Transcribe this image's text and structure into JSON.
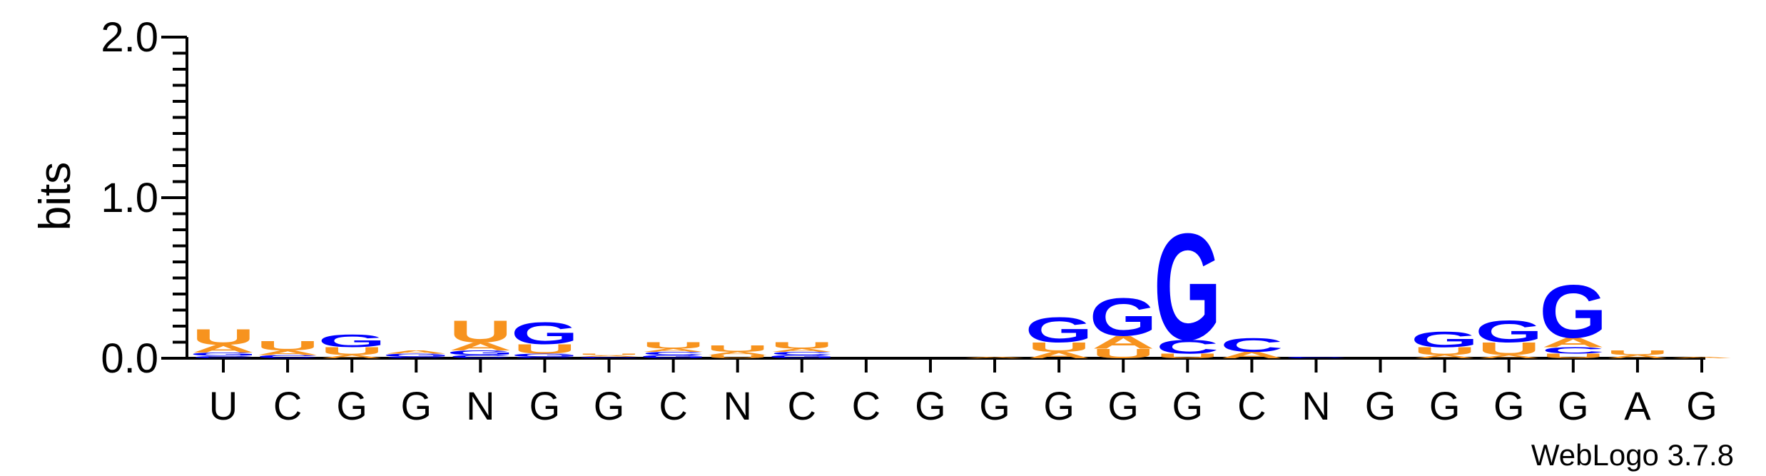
{
  "chart_data": {
    "type": "sequence-logo",
    "ylabel": "bits",
    "ylim": [
      0,
      2.0
    ],
    "yticks": [
      "0.0",
      "1.0",
      "2.0"
    ],
    "xticks": [
      "U",
      "C",
      "G",
      "G",
      "N",
      "G",
      "G",
      "C",
      "N",
      "C",
      "C",
      "G",
      "G",
      "G",
      "G",
      "G",
      "C",
      "N",
      "G",
      "G",
      "G",
      "G",
      "A",
      "G"
    ],
    "credit": "WebLogo 3.7.8",
    "colors": {
      "A": "#f7931e",
      "U": "#f7931e",
      "C": "#0000ff",
      "G": "#0000ff"
    },
    "positions": [
      [
        [
          "C",
          0.015
        ],
        [
          "G",
          0.02
        ],
        [
          "A",
          0.05
        ],
        [
          "U",
          0.1
        ]
      ],
      [
        [
          "C",
          0.02
        ],
        [
          "A",
          0.03
        ],
        [
          "U",
          0.06
        ]
      ],
      [
        [
          "A",
          0.02
        ],
        [
          "U",
          0.05
        ],
        [
          "G",
          0.08
        ]
      ],
      [
        [
          "C",
          0.01
        ],
        [
          "G",
          0.02
        ],
        [
          "A",
          0.02
        ]
      ],
      [
        [
          "C",
          0.02
        ],
        [
          "G",
          0.03
        ],
        [
          "A",
          0.05
        ],
        [
          "U",
          0.14
        ]
      ],
      [
        [
          "C",
          0.01
        ],
        [
          "G",
          0.02
        ],
        [
          "U",
          0.06
        ],
        [
          "G",
          0.14
        ]
      ],
      [
        [
          "C",
          0.01
        ],
        [
          "A",
          0.01
        ],
        [
          "U",
          0.01
        ]
      ],
      [
        [
          "G",
          0.02
        ],
        [
          "C",
          0.02
        ],
        [
          "A",
          0.02
        ],
        [
          "U",
          0.04
        ]
      ],
      [
        [
          "U",
          0.02
        ],
        [
          "A",
          0.02
        ],
        [
          "U",
          0.04
        ]
      ],
      [
        [
          "G",
          0.02
        ],
        [
          "C",
          0.02
        ],
        [
          "A",
          0.02
        ],
        [
          "U",
          0.04
        ]
      ],
      [],
      [],
      [
        [
          "A",
          0.01
        ]
      ],
      [
        [
          "A",
          0.04
        ],
        [
          "U",
          0.06
        ],
        [
          "G",
          0.16
        ]
      ],
      [
        [
          "U",
          0.06
        ],
        [
          "A",
          0.08
        ],
        [
          "G",
          0.24
        ]
      ],
      [
        [
          "U",
          0.03
        ],
        [
          "C",
          0.09
        ],
        [
          "G",
          0.68
        ]
      ],
      [
        [
          "A",
          0.04
        ],
        [
          "C",
          0.09
        ]
      ],
      [
        [
          "C",
          0.01
        ]
      ],
      [],
      [
        [
          "A",
          0.02
        ],
        [
          "U",
          0.05
        ],
        [
          "G",
          0.1
        ]
      ],
      [
        [
          "A",
          0.02
        ],
        [
          "U",
          0.08
        ],
        [
          "G",
          0.14
        ]
      ],
      [
        [
          "U",
          0.03
        ],
        [
          "C",
          0.04
        ],
        [
          "A",
          0.06
        ],
        [
          "G",
          0.34
        ]
      ],
      [
        [
          "A",
          0.02
        ],
        [
          "U",
          0.03
        ]
      ],
      [
        [
          "A",
          0.01
        ]
      ]
    ]
  }
}
